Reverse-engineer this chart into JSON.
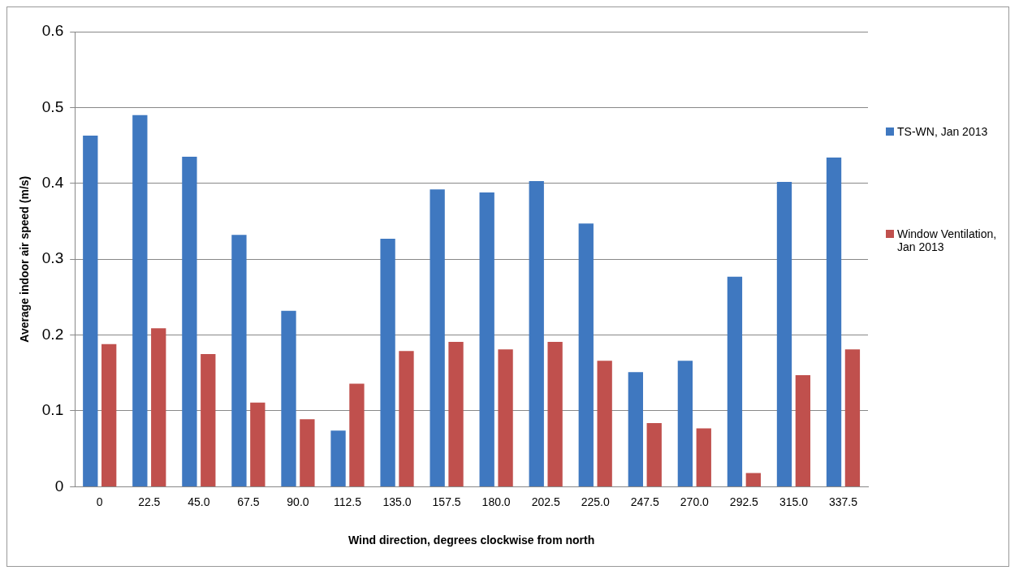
{
  "chart_data": {
    "type": "bar",
    "xlabel": "Wind direction, degrees clockwise from north",
    "ylabel": "Average indoor air speed (m/s)",
    "categories": [
      "0",
      "22.5",
      "45.0",
      "67.5",
      "90.0",
      "112.5",
      "135.0",
      "157.5",
      "180.0",
      "202.5",
      "225.0",
      "247.5",
      "270.0",
      "292.5",
      "315.0",
      "337.5"
    ],
    "series": [
      {
        "name": "TS-WN, Jan 2013",
        "color": "#3f78c0",
        "values": [
          0.463,
          0.49,
          0.435,
          0.332,
          0.232,
          0.074,
          0.327,
          0.392,
          0.388,
          0.403,
          0.347,
          0.151,
          0.166,
          0.277,
          0.402,
          0.434
        ]
      },
      {
        "name": "Window Ventilation, Jan 2013",
        "color": "#c0504d",
        "values": [
          0.188,
          0.209,
          0.175,
          0.111,
          0.089,
          0.136,
          0.179,
          0.191,
          0.181,
          0.191,
          0.166,
          0.084,
          0.077,
          0.018,
          0.147,
          0.181
        ]
      }
    ],
    "ylim": [
      0,
      0.6
    ],
    "yticks": [
      0,
      0.1,
      0.2,
      0.3,
      0.4,
      0.5,
      0.6
    ],
    "grid": "y",
    "legend": "right"
  }
}
